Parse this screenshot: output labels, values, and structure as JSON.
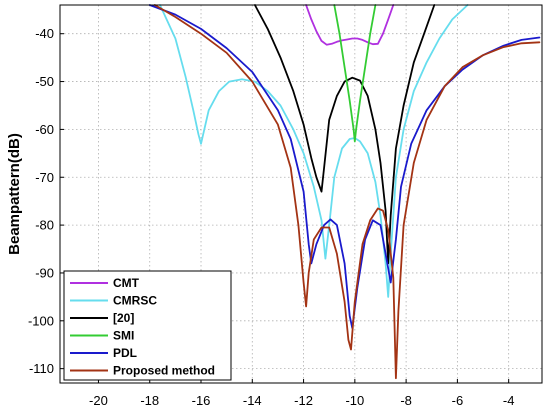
{
  "chart_data": {
    "type": "line",
    "title": "",
    "xlabel": "",
    "ylabel": "Beampattern(dB)",
    "xlim": [
      -21.5,
      -2.7
    ],
    "ylim": [
      -113,
      -34
    ],
    "grid": true,
    "legend_position": "bottom-left",
    "x_ticks": [
      -20,
      -18,
      -16,
      -14,
      -12,
      -10,
      -8,
      -6,
      -4
    ],
    "x_tick_labels": [
      "-20",
      "-18",
      "-16",
      "-14",
      "-12",
      "-10",
      "-8",
      "-6",
      "-4"
    ],
    "y_ticks": [
      -110,
      -100,
      -90,
      -80,
      -70,
      -60,
      -50,
      -40
    ],
    "y_tick_labels": [
      "-110",
      "-100",
      "-90",
      "-80",
      "-70",
      "-60",
      "-50",
      "-40"
    ],
    "series": [
      {
        "name": "CMT",
        "color": "#b030e0",
        "x": [
          -11.9,
          -11.7,
          -11.5,
          -11.3,
          -11.1,
          -10.9,
          -10.7,
          -10.5,
          -10.3,
          -10.1,
          -9.9,
          -9.7,
          -9.5,
          -9.3,
          -9.1,
          -8.9,
          -8.7,
          -8.5
        ],
        "y": [
          -34,
          -37,
          -39.5,
          -41.5,
          -42.3,
          -42.1,
          -41.7,
          -41.4,
          -41.2,
          -41,
          -41,
          -41.3,
          -41.8,
          -42.2,
          -42.1,
          -40,
          -37,
          -34
        ]
      },
      {
        "name": "CMRSC",
        "color": "#66ddee",
        "x": [
          -17.6,
          -17.0,
          -16.6,
          -16.3,
          -16.1,
          -16.0,
          -15.7,
          -15.3,
          -14.9,
          -14.4,
          -13.9,
          -13.4,
          -12.9,
          -12.4,
          -12.0,
          -11.6,
          -11.3,
          -11.15,
          -11.0,
          -10.8,
          -10.5,
          -10.2,
          -10.0,
          -9.8,
          -9.5,
          -9.2,
          -9.0,
          -8.8,
          -8.7,
          -8.6,
          -8.4,
          -8.1,
          -7.7,
          -7.2,
          -6.7,
          -6.2,
          -5.6
        ],
        "y": [
          -34,
          -41,
          -49,
          -56,
          -61,
          -63,
          -56,
          -52,
          -50,
          -49.5,
          -50,
          -52,
          -55,
          -60,
          -65,
          -72,
          -79,
          -87,
          -80,
          -70,
          -64,
          -62,
          -61.8,
          -62.5,
          -65,
          -71,
          -78,
          -88,
          -95,
          -86,
          -70,
          -60,
          -52,
          -46,
          -41,
          -37,
          -34
        ]
      },
      {
        "name": "[20]",
        "color": "#000000",
        "x": [
          -13.9,
          -13.4,
          -12.9,
          -12.4,
          -12.0,
          -11.7,
          -11.5,
          -11.3,
          -11.2,
          -11.0,
          -10.7,
          -10.4,
          -10.1,
          -9.8,
          -9.5,
          -9.2,
          -9.0,
          -8.8,
          -8.7,
          -8.6,
          -8.4,
          -8.1,
          -7.7,
          -7.3,
          -6.9
        ],
        "y": [
          -34,
          -39,
          -45,
          -52,
          -59,
          -66,
          -70,
          -73,
          -68,
          -58,
          -53,
          -50,
          -49.2,
          -49.8,
          -53,
          -60,
          -67,
          -77,
          -88,
          -78,
          -64,
          -55,
          -46,
          -40,
          -34
        ]
      },
      {
        "name": "SMI",
        "color": "#33cc33",
        "x": [
          -10.8,
          -10.6,
          -10.4,
          -10.2,
          -10.05,
          -10.0,
          -9.95,
          -9.8,
          -9.6,
          -9.4,
          -9.2
        ],
        "y": [
          -34,
          -40,
          -47,
          -54,
          -60,
          -62.5,
          -60,
          -54,
          -47,
          -40,
          -34
        ]
      },
      {
        "name": "PDL",
        "color": "#1a1acc",
        "x": [
          -18.0,
          -17.0,
          -16.0,
          -15.0,
          -14.0,
          -13.0,
          -12.5,
          -12.0,
          -11.8,
          -11.7,
          -11.5,
          -11.2,
          -10.95,
          -10.7,
          -10.4,
          -10.2,
          -10.1,
          -9.9,
          -9.6,
          -9.3,
          -9.0,
          -8.8,
          -8.6,
          -8.4,
          -8.2,
          -7.8,
          -7.2,
          -6.5,
          -5.8,
          -5.0,
          -4.2,
          -3.5,
          -2.8
        ],
        "y": [
          -34,
          -36,
          -39,
          -43,
          -48,
          -56,
          -62,
          -73,
          -84,
          -88,
          -84,
          -80,
          -78.8,
          -80,
          -88,
          -99,
          -101.5,
          -93,
          -83,
          -79,
          -80,
          -86,
          -92,
          -83,
          -72,
          -63,
          -56,
          -51,
          -47.5,
          -44.5,
          -42.5,
          -41.3,
          -40.8
        ]
      },
      {
        "name": "Proposed method",
        "color": "#a33314",
        "x": [
          -17.8,
          -17.0,
          -16.0,
          -15.0,
          -14.0,
          -13.0,
          -12.5,
          -12.2,
          -12.0,
          -11.9,
          -11.8,
          -11.6,
          -11.3,
          -11.0,
          -10.7,
          -10.4,
          -10.25,
          -10.15,
          -10.0,
          -9.7,
          -9.4,
          -9.1,
          -8.9,
          -8.7,
          -8.5,
          -8.4,
          -8.3,
          -8.1,
          -7.7,
          -7.2,
          -6.5,
          -5.8,
          -5.0,
          -4.2,
          -3.5,
          -2.8
        ],
        "y": [
          -34,
          -36.5,
          -40,
          -44,
          -50,
          -59,
          -68,
          -80,
          -92,
          -97,
          -90,
          -83,
          -80.5,
          -80.5,
          -86,
          -96,
          -104,
          -106,
          -96,
          -84,
          -79,
          -76.5,
          -77,
          -81,
          -91,
          -112,
          -98,
          -80,
          -67,
          -58,
          -51,
          -47,
          -44.5,
          -42.8,
          -42,
          -41.8
        ]
      }
    ]
  }
}
